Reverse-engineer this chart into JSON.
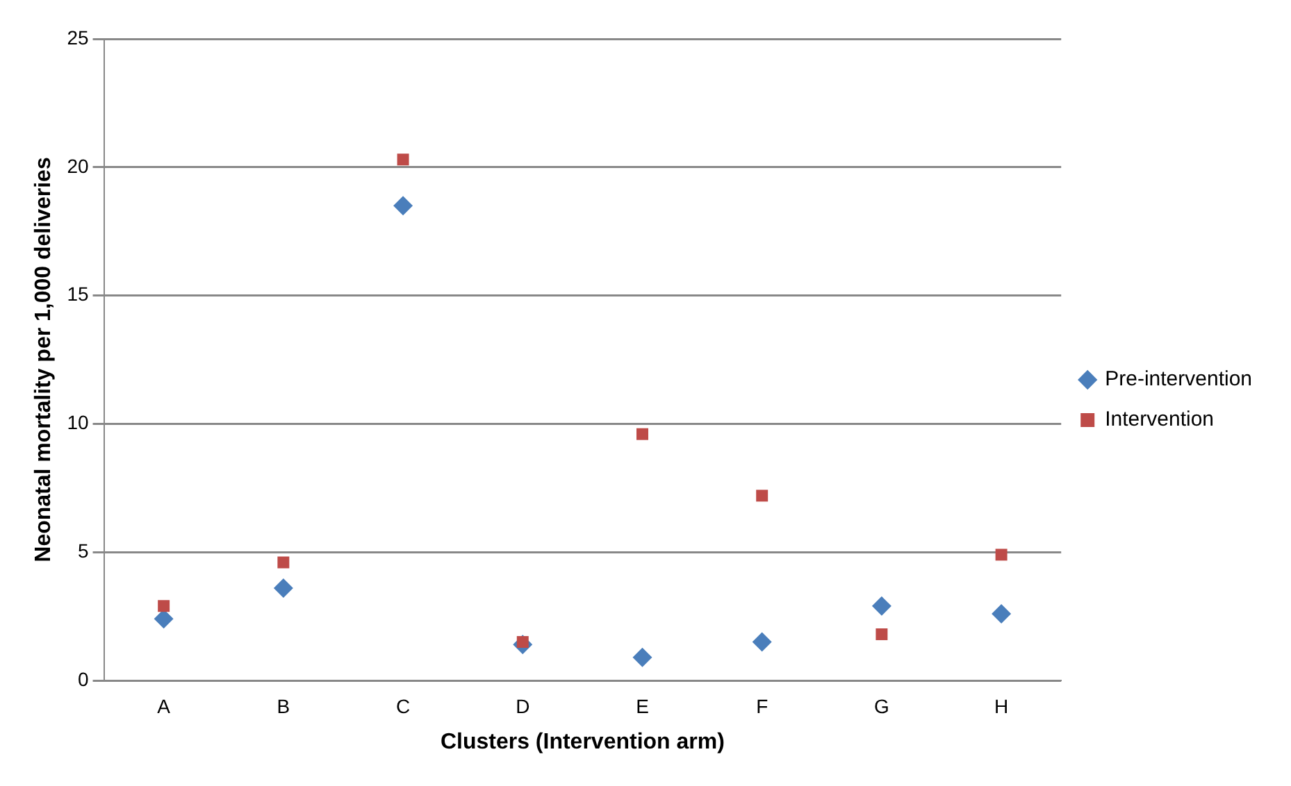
{
  "chart_data": {
    "type": "scatter",
    "xlabel": "Clusters (Intervention arm)",
    "ylabel": "Neonatal mortality per 1,000 deliveries",
    "categories": [
      "A",
      "B",
      "C",
      "D",
      "E",
      "F",
      "G",
      "H"
    ],
    "series": [
      {
        "name": "Pre-intervention",
        "color": "#4a7ebb",
        "marker": "diamond",
        "values": [
          2.4,
          3.6,
          18.5,
          1.4,
          0.9,
          1.5,
          2.9,
          2.6
        ]
      },
      {
        "name": "Intervention",
        "color": "#be4b48",
        "marker": "square",
        "values": [
          2.9,
          4.6,
          20.3,
          1.5,
          9.6,
          7.2,
          1.8,
          4.9
        ]
      }
    ],
    "ylim": [
      0,
      25
    ],
    "yticks": [
      0,
      5,
      10,
      15,
      20,
      25
    ],
    "grid": "y",
    "legend": "right"
  }
}
